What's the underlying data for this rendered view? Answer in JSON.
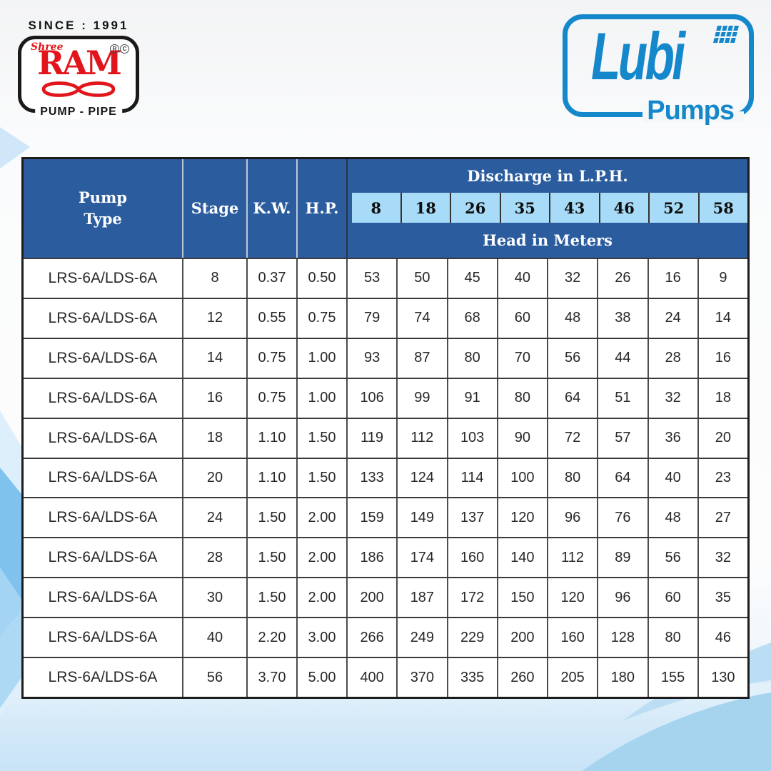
{
  "branding": {
    "ram": {
      "since": "SINCE : 1991",
      "shree": "Shree",
      "name": "RAM",
      "reg": "R",
      "copy": "C",
      "tagline": "PUMP - PIPE"
    },
    "lubi": {
      "name": "Lubi",
      "tagline": "Pumps"
    }
  },
  "colors": {
    "ram_red": "#e0161c",
    "lubi_blue": "#1488cb",
    "header_blue": "#2b5c9e",
    "band_blue": "#a7dbf7"
  },
  "table": {
    "header": {
      "pump_type": "Pump\nType",
      "stage": "Stage",
      "kw": "K.W.",
      "hp": "H.P.",
      "discharge": "Discharge in L.P.H.",
      "head": "Head in Meters"
    },
    "discharge_values": [
      "8",
      "18",
      "26",
      "35",
      "43",
      "46",
      "52",
      "58"
    ],
    "rows": [
      {
        "pump_type": "LRS-6A/LDS-6A",
        "stage": "8",
        "kw": "0.37",
        "hp": "0.50",
        "heads": [
          "53",
          "50",
          "45",
          "40",
          "32",
          "26",
          "16",
          "9"
        ]
      },
      {
        "pump_type": "LRS-6A/LDS-6A",
        "stage": "12",
        "kw": "0.55",
        "hp": "0.75",
        "heads": [
          "79",
          "74",
          "68",
          "60",
          "48",
          "38",
          "24",
          "14"
        ]
      },
      {
        "pump_type": "LRS-6A/LDS-6A",
        "stage": "14",
        "kw": "0.75",
        "hp": "1.00",
        "heads": [
          "93",
          "87",
          "80",
          "70",
          "56",
          "44",
          "28",
          "16"
        ]
      },
      {
        "pump_type": "LRS-6A/LDS-6A",
        "stage": "16",
        "kw": "0.75",
        "hp": "1.00",
        "heads": [
          "106",
          "99",
          "91",
          "80",
          "64",
          "51",
          "32",
          "18"
        ]
      },
      {
        "pump_type": "LRS-6A/LDS-6A",
        "stage": "18",
        "kw": "1.10",
        "hp": "1.50",
        "heads": [
          "119",
          "112",
          "103",
          "90",
          "72",
          "57",
          "36",
          "20"
        ]
      },
      {
        "pump_type": "LRS-6A/LDS-6A",
        "stage": "20",
        "kw": "1.10",
        "hp": "1.50",
        "heads": [
          "133",
          "124",
          "114",
          "100",
          "80",
          "64",
          "40",
          "23"
        ]
      },
      {
        "pump_type": "LRS-6A/LDS-6A",
        "stage": "24",
        "kw": "1.50",
        "hp": "2.00",
        "heads": [
          "159",
          "149",
          "137",
          "120",
          "96",
          "76",
          "48",
          "27"
        ]
      },
      {
        "pump_type": "LRS-6A/LDS-6A",
        "stage": "28",
        "kw": "1.50",
        "hp": "2.00",
        "heads": [
          "186",
          "174",
          "160",
          "140",
          "112",
          "89",
          "56",
          "32"
        ]
      },
      {
        "pump_type": "LRS-6A/LDS-6A",
        "stage": "30",
        "kw": "1.50",
        "hp": "2.00",
        "heads": [
          "200",
          "187",
          "172",
          "150",
          "120",
          "96",
          "60",
          "35"
        ]
      },
      {
        "pump_type": "LRS-6A/LDS-6A",
        "stage": "40",
        "kw": "2.20",
        "hp": "3.00",
        "heads": [
          "266",
          "249",
          "229",
          "200",
          "160",
          "128",
          "80",
          "46"
        ]
      },
      {
        "pump_type": "LRS-6A/LDS-6A",
        "stage": "56",
        "kw": "3.70",
        "hp": "5.00",
        "heads": [
          "400",
          "370",
          "335",
          "260",
          "205",
          "180",
          "155",
          "130"
        ]
      }
    ]
  }
}
